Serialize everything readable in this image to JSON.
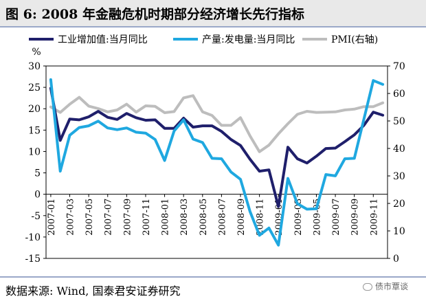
{
  "title": "图 6:  2008 年金融危机时期部分经济增长先行指标",
  "source": "数据来源:  Wind, 国泰君安证券研究",
  "watermark": "债市覃谈",
  "chart_data": {
    "type": "line",
    "ylabel_left": "%",
    "ylim_left": [
      -15,
      30
    ],
    "yticks_left": [
      -15,
      -10,
      -5,
      0,
      5,
      10,
      15,
      20,
      25,
      30
    ],
    "ylim_right": [
      0,
      70
    ],
    "yticks_right": [
      0,
      10,
      20,
      30,
      40,
      50,
      60,
      70
    ],
    "legend_position": "top",
    "x": [
      "2007-01",
      "2007-02",
      "2007-03",
      "2007-04",
      "2007-05",
      "2007-06",
      "2007-07",
      "2007-08",
      "2007-09",
      "2007-10",
      "2007-11",
      "2007-12",
      "2008-01",
      "2008-02",
      "2008-03",
      "2008-04",
      "2008-05",
      "2008-06",
      "2008-07",
      "2008-08",
      "2008-09",
      "2008-10",
      "2008-11",
      "2008-12",
      "2009-01",
      "2009-02",
      "2009-03",
      "2009-04",
      "2009-05",
      "2009-06",
      "2009-07",
      "2009-08",
      "2009-09",
      "2009-10",
      "2009-11",
      "2009-12"
    ],
    "x_tick_labels": [
      "2007-01",
      "2007-03",
      "2007-05",
      "2007-07",
      "2007-09",
      "2007-11",
      "2008-01",
      "2008-03",
      "2008-05",
      "2008-07",
      "2008-09",
      "2008-11",
      "2009-01",
      "2009-03",
      "2009-05",
      "2009-07",
      "2009-09",
      "2009-11"
    ],
    "series": [
      {
        "name": "工业增加值:当月同比",
        "axis": "left",
        "color": "#1f1f6b",
        "values": [
          24.8,
          12.6,
          17.6,
          17.4,
          18.1,
          19.4,
          18.0,
          17.5,
          18.9,
          17.9,
          17.3,
          17.4,
          15.4,
          15.4,
          17.8,
          15.7,
          16.0,
          16.0,
          14.7,
          12.8,
          11.4,
          8.2,
          5.4,
          5.7,
          -2.9,
          11.0,
          8.3,
          7.3,
          8.9,
          10.7,
          10.8,
          12.3,
          13.9,
          16.1,
          19.2,
          18.5
        ]
      },
      {
        "name": "产量:发电量:当月同比",
        "axis": "left",
        "color": "#1fa8e0",
        "values": [
          26.8,
          5.4,
          13.8,
          15.6,
          16.0,
          17.1,
          15.5,
          15.1,
          15.5,
          14.5,
          14.3,
          12.8,
          7.9,
          14.8,
          17.4,
          12.9,
          12.1,
          8.4,
          8.3,
          5.2,
          3.5,
          -4.0,
          -9.6,
          -7.9,
          -11.9,
          3.7,
          -2.2,
          -3.5,
          -3.4,
          4.6,
          4.3,
          8.3,
          8.4,
          17.5,
          26.6,
          25.7
        ]
      },
      {
        "name": "PMI(右轴)",
        "axis": "right",
        "color": "#bdbdbd",
        "values": [
          55.1,
          53.1,
          56.1,
          58.6,
          55.4,
          54.5,
          53.3,
          54.0,
          56.1,
          53.2,
          55.5,
          55.3,
          53.0,
          53.4,
          58.4,
          59.2,
          53.3,
          52.0,
          48.4,
          48.4,
          51.2,
          44.6,
          38.8,
          41.2,
          45.3,
          49.0,
          52.4,
          53.5,
          53.1,
          53.2,
          53.3,
          54.0,
          54.3,
          55.2,
          55.2,
          56.6
        ]
      }
    ]
  }
}
